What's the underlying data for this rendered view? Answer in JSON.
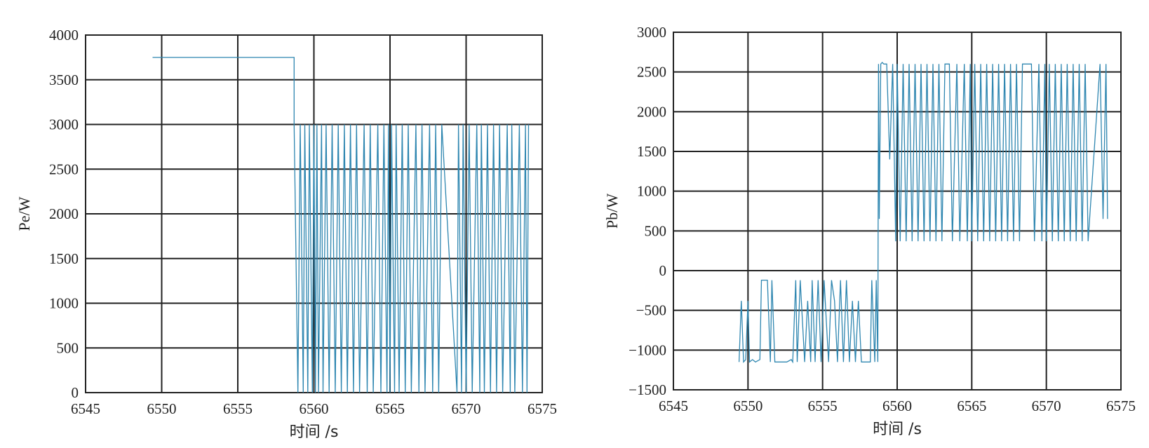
{
  "colors": {
    "series": "#2e86b0",
    "grid": "#222222"
  },
  "chart_data": [
    {
      "type": "line",
      "xlabel": "时间 /s",
      "ylabel": "Pe/W",
      "xlim": [
        6545,
        6575
      ],
      "ylim": [
        0,
        4000
      ],
      "xticks": [
        6545,
        6550,
        6555,
        6560,
        6565,
        6570,
        6575
      ],
      "yticks": [
        0,
        500,
        1000,
        1500,
        2000,
        2500,
        3000,
        3500,
        4000
      ],
      "grid": true,
      "series": [
        {
          "x": [
            6549.4,
            6558.7,
            6558.7,
            6558.95,
            6559.1,
            6559.3,
            6559.4,
            6559.6,
            6559.7,
            6559.9,
            6560.0,
            6560.1,
            6560.2,
            6560.3,
            6560.5,
            6560.6,
            6560.8,
            6561.0,
            6561.2,
            6561.4,
            6561.6,
            6561.8,
            6562.0,
            6562.2,
            6562.4,
            6562.6,
            6562.8,
            6563.0,
            6563.3,
            6563.5,
            6563.7,
            6563.9,
            6564.2,
            6564.4,
            6564.6,
            6564.8,
            6564.9,
            6565.0,
            6565.1,
            6565.3,
            6565.4,
            6565.6,
            6565.8,
            6566.0,
            6566.2,
            6566.4,
            6566.7,
            6566.9,
            6567.1,
            6567.3,
            6567.6,
            6567.8,
            6568.0,
            6568.2,
            6568.4,
            6569.4,
            6569.5,
            6569.7,
            6569.8,
            6570.0,
            6570.2,
            6570.4,
            6570.7,
            6570.9,
            6571.0,
            6571.2,
            6571.4,
            6571.6,
            6571.8,
            6572.0,
            6572.2,
            6572.4,
            6572.7,
            6572.9,
            6573.0,
            6573.2,
            6573.5,
            6573.7,
            6573.9,
            6574.0,
            6574.1
          ],
          "y": [
            3750,
            3750,
            3000,
            0,
            3000,
            0,
            3000,
            0,
            3000,
            0,
            3000,
            0,
            3000,
            0,
            3000,
            0,
            3000,
            0,
            3000,
            0,
            3000,
            0,
            3000,
            0,
            3000,
            0,
            3000,
            0,
            3000,
            0,
            3000,
            0,
            3000,
            0,
            3000,
            0,
            3000,
            0,
            3000,
            0,
            3000,
            0,
            3000,
            0,
            3000,
            0,
            3000,
            0,
            3000,
            0,
            3000,
            0,
            3000,
            0,
            3000,
            0,
            3000,
            0,
            3000,
            0,
            3000,
            0,
            3000,
            0,
            3000,
            0,
            3000,
            0,
            3000,
            0,
            3000,
            0,
            3000,
            0,
            3000,
            0,
            3000,
            0,
            3000,
            0,
            3000
          ]
        }
      ]
    },
    {
      "type": "line",
      "xlabel": "时间 /s",
      "ylabel": "Pb/W",
      "xlim": [
        6545,
        6575
      ],
      "ylim": [
        -1500,
        3000
      ],
      "xticks": [
        6545,
        6550,
        6555,
        6560,
        6565,
        6570,
        6575
      ],
      "yticks": [
        -1500,
        -1000,
        -500,
        0,
        500,
        1000,
        1500,
        2000,
        2500,
        3000
      ],
      "grid": true,
      "series": [
        {
          "x": [
            6549.4,
            6549.55,
            6549.7,
            6549.85,
            6550.0,
            6550.1,
            6550.3,
            6550.5,
            6550.8,
            6550.9,
            6551.0,
            6551.3,
            6551.5,
            6551.6,
            6551.8,
            6552.0,
            6552.6,
            6552.9,
            6553.0,
            6553.2,
            6553.3,
            6553.5,
            6553.8,
            6554.0,
            6554.2,
            6554.3,
            6554.5,
            6554.7,
            6554.9,
            6555.1,
            6555.4,
            6555.6,
            6555.8,
            6556.0,
            6556.2,
            6556.4,
            6556.6,
            6556.8,
            6557.0,
            6557.2,
            6557.4,
            6557.6,
            6558.2,
            6558.3,
            6558.5,
            6558.6,
            6558.7,
            6558.75,
            6558.8,
            6558.9,
            6559.0,
            6559.1,
            6559.3,
            6559.5,
            6559.7,
            6559.9,
            6560.0,
            6560.2,
            6560.4,
            6560.6,
            6560.8,
            6561.0,
            6561.2,
            6561.4,
            6561.6,
            6561.8,
            6562.0,
            6562.2,
            6562.4,
            6562.6,
            6562.8,
            6563.0,
            6563.2,
            6563.5,
            6563.7,
            6564.0,
            6564.2,
            6564.5,
            6564.7,
            6564.9,
            6565.0,
            6565.2,
            6565.4,
            6565.6,
            6565.8,
            6566.0,
            6566.2,
            6566.4,
            6566.6,
            6566.8,
            6567.0,
            6567.2,
            6567.4,
            6567.6,
            6567.8,
            6568.0,
            6568.2,
            6568.4,
            6569.0,
            6569.2,
            6569.5,
            6569.7,
            6569.9,
            6570.0,
            6570.2,
            6570.4,
            6570.6,
            6570.8,
            6571.0,
            6571.2,
            6571.4,
            6571.6,
            6571.8,
            6572.0,
            6572.2,
            6572.4,
            6572.6,
            6572.8,
            6573.6,
            6573.8,
            6574.0,
            6574.1
          ],
          "y": [
            -1150,
            -380,
            -1150,
            -1120,
            -380,
            -1150,
            -1120,
            -1150,
            -1120,
            -120,
            -120,
            -120,
            -1150,
            -120,
            -1150,
            -1150,
            -1150,
            -1120,
            -1150,
            -120,
            -1150,
            -120,
            -1150,
            -380,
            -1150,
            -120,
            -1150,
            -120,
            -1150,
            -120,
            -1150,
            -120,
            -380,
            -1150,
            -120,
            -1150,
            -120,
            -1150,
            -380,
            -1150,
            -380,
            -1150,
            -1150,
            -120,
            -1150,
            -120,
            -1150,
            2600,
            650,
            2600,
            2620,
            2600,
            2600,
            1400,
            2600,
            370,
            2600,
            370,
            2600,
            370,
            2600,
            370,
            2600,
            370,
            2600,
            370,
            2600,
            370,
            2600,
            370,
            2600,
            370,
            2600,
            2600,
            370,
            2600,
            370,
            2600,
            370,
            2600,
            370,
            2600,
            370,
            2600,
            370,
            2600,
            370,
            2600,
            370,
            2600,
            370,
            2600,
            370,
            2600,
            370,
            2600,
            370,
            2600,
            2600,
            370,
            2600,
            370,
            2600,
            370,
            2600,
            370,
            2600,
            370,
            2600,
            370,
            2600,
            370,
            2600,
            370,
            2600,
            370,
            2600,
            370,
            2600,
            650,
            2600,
            650
          ]
        }
      ]
    }
  ]
}
